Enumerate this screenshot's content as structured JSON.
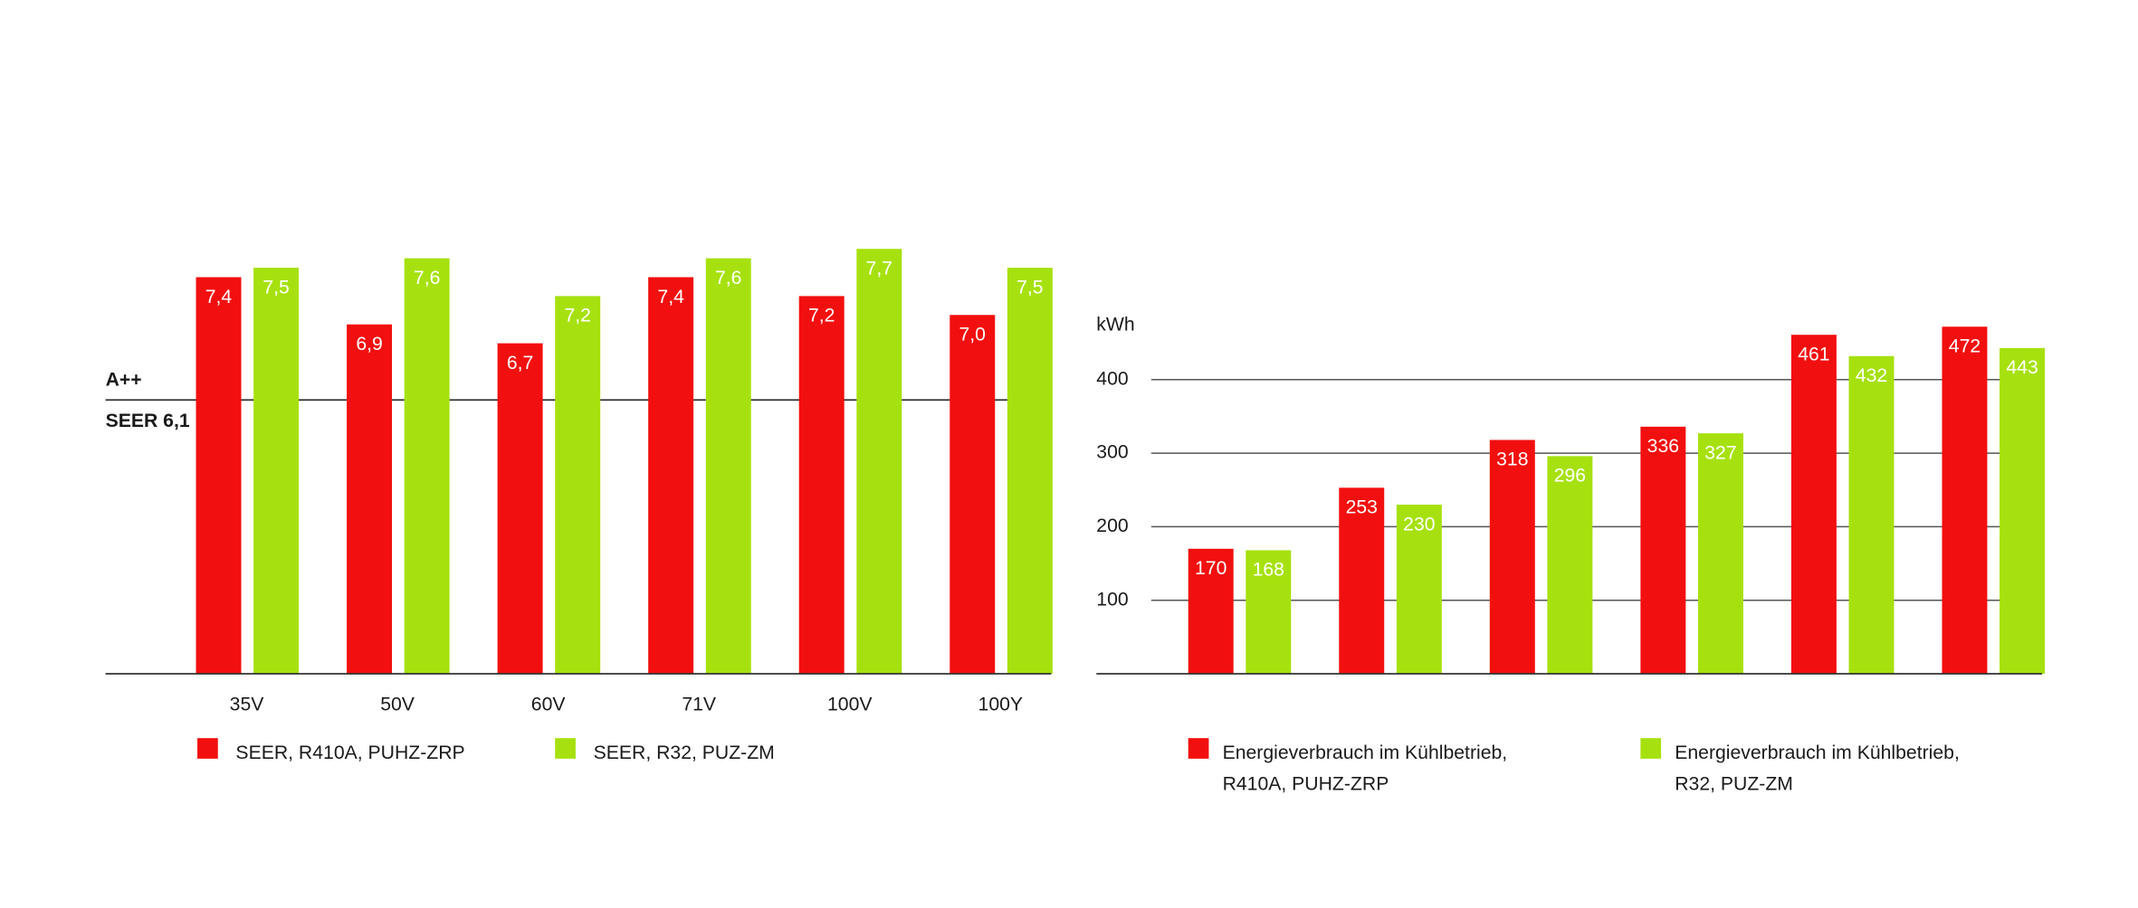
{
  "chart_data": [
    {
      "type": "bar",
      "categories": [
        "35V",
        "50V",
        "60V",
        "71V",
        "100V",
        "100Y"
      ],
      "series": [
        {
          "name": "SEER, R410A, PUHZ-ZRP",
          "color": "#f20f0f",
          "values": [
            7.4,
            6.9,
            6.7,
            7.4,
            7.2,
            7.0
          ],
          "value_labels": [
            "7,4",
            "6,9",
            "6,7",
            "7,4",
            "7,2",
            "7,0"
          ]
        },
        {
          "name": "SEER, R32, PUZ-ZM",
          "color": "#a6e10f",
          "values": [
            7.5,
            7.6,
            7.2,
            7.6,
            7.7,
            7.5
          ],
          "value_labels": [
            "7,5",
            "7,6",
            "7,2",
            "7,6",
            "7,7",
            "7,5"
          ]
        }
      ],
      "ylim": [
        3.2,
        8
      ],
      "reference_line": {
        "value": 6.1,
        "label_above": "A++",
        "label_below": "SEER 6,1"
      }
    },
    {
      "type": "bar",
      "y_label": "kWh",
      "categories": [
        null,
        null,
        null,
        null,
        null,
        null
      ],
      "series": [
        {
          "name": "Energieverbrauch im Kühlbetrieb, R410A, PUHZ-ZRP",
          "color": "#f20f0f",
          "values": [
            170,
            253,
            318,
            336,
            461,
            472
          ]
        },
        {
          "name": "Energieverbrauch im Kühlbetrieb, R32, PUZ-ZM",
          "color": "#a6e10f",
          "values": [
            168,
            230,
            296,
            327,
            432,
            443
          ]
        }
      ],
      "ylim": [
        0,
        500
      ],
      "yticks": [
        100,
        200,
        300,
        400
      ],
      "grid": true
    }
  ]
}
